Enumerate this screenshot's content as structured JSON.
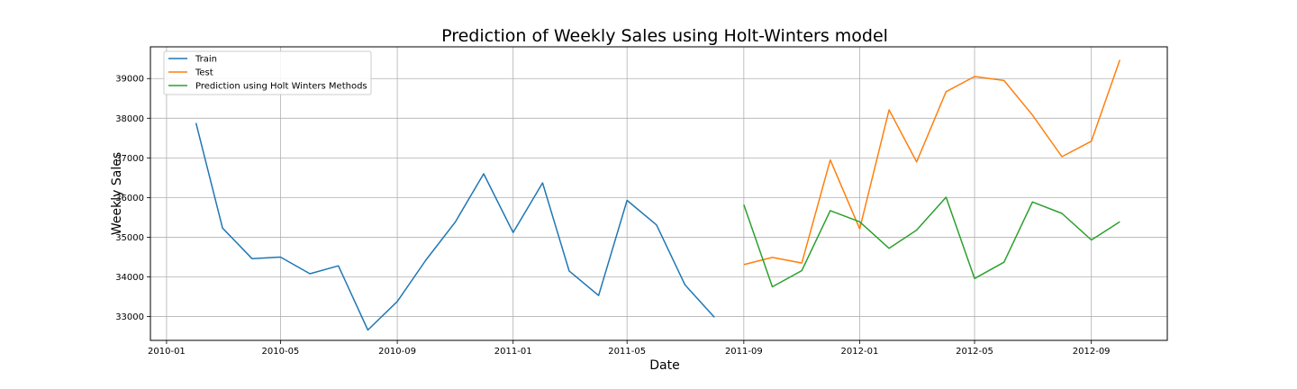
{
  "chart_data": {
    "type": "line",
    "title": "Prediction of Weekly Sales using Holt-Winters model",
    "xlabel": "Date",
    "ylabel": "Weekly Sales",
    "xlim": [
      "2009-12-15",
      "2012-11-20"
    ],
    "ylim": [
      32400,
      39800
    ],
    "x_ticks": [
      {
        "date": "2010-01-01",
        "label": "2010-01"
      },
      {
        "date": "2010-05-01",
        "label": "2010-05"
      },
      {
        "date": "2010-09-01",
        "label": "2010-09"
      },
      {
        "date": "2011-01-01",
        "label": "2011-01"
      },
      {
        "date": "2011-05-01",
        "label": "2011-05"
      },
      {
        "date": "2011-09-01",
        "label": "2011-09"
      },
      {
        "date": "2012-01-01",
        "label": "2012-01"
      },
      {
        "date": "2012-05-01",
        "label": "2012-05"
      },
      {
        "date": "2012-09-01",
        "label": "2012-09"
      }
    ],
    "y_ticks": [
      33000,
      34000,
      35000,
      36000,
      37000,
      38000,
      39000
    ],
    "grid": true,
    "legend_position": "top-left",
    "series": [
      {
        "name": "Train",
        "color": "#1f77b4",
        "points": [
          {
            "x": "2010-02-01",
            "y": 37880
          },
          {
            "x": "2010-03-01",
            "y": 35230
          },
          {
            "x": "2010-04-01",
            "y": 34460
          },
          {
            "x": "2010-05-01",
            "y": 34500
          },
          {
            "x": "2010-06-01",
            "y": 34080
          },
          {
            "x": "2010-07-01",
            "y": 34280
          },
          {
            "x": "2010-08-01",
            "y": 32660
          },
          {
            "x": "2010-09-01",
            "y": 33380
          },
          {
            "x": "2010-10-01",
            "y": 34420
          },
          {
            "x": "2010-11-01",
            "y": 35380
          },
          {
            "x": "2010-12-01",
            "y": 36600
          },
          {
            "x": "2011-01-01",
            "y": 35120
          },
          {
            "x": "2011-02-01",
            "y": 36370
          },
          {
            "x": "2011-03-01",
            "y": 34150
          },
          {
            "x": "2011-04-01",
            "y": 33530
          },
          {
            "x": "2011-05-01",
            "y": 35930
          },
          {
            "x": "2011-06-01",
            "y": 35310
          },
          {
            "x": "2011-07-01",
            "y": 33800
          },
          {
            "x": "2011-08-01",
            "y": 32980
          }
        ]
      },
      {
        "name": "Test",
        "color": "#ff7f0e",
        "points": [
          {
            "x": "2011-09-01",
            "y": 34310
          },
          {
            "x": "2011-10-01",
            "y": 34490
          },
          {
            "x": "2011-11-01",
            "y": 34350
          },
          {
            "x": "2011-12-01",
            "y": 36950
          },
          {
            "x": "2012-01-01",
            "y": 35210
          },
          {
            "x": "2012-02-01",
            "y": 38210
          },
          {
            "x": "2012-03-01",
            "y": 36900
          },
          {
            "x": "2012-04-01",
            "y": 38670
          },
          {
            "x": "2012-05-01",
            "y": 39050
          },
          {
            "x": "2012-06-01",
            "y": 38950
          },
          {
            "x": "2012-07-01",
            "y": 38080
          },
          {
            "x": "2012-08-01",
            "y": 37030
          },
          {
            "x": "2012-09-01",
            "y": 37420
          },
          {
            "x": "2012-10-01",
            "y": 39470
          }
        ]
      },
      {
        "name": "Prediction using Holt Winters Methods",
        "color": "#2ca02c",
        "points": [
          {
            "x": "2011-09-01",
            "y": 35820
          },
          {
            "x": "2011-10-01",
            "y": 33750
          },
          {
            "x": "2011-11-01",
            "y": 34160
          },
          {
            "x": "2011-12-01",
            "y": 35670
          },
          {
            "x": "2012-01-01",
            "y": 35390
          },
          {
            "x": "2012-02-01",
            "y": 34720
          },
          {
            "x": "2012-03-01",
            "y": 35180
          },
          {
            "x": "2012-04-01",
            "y": 36010
          },
          {
            "x": "2012-05-01",
            "y": 33960
          },
          {
            "x": "2012-06-01",
            "y": 34370
          },
          {
            "x": "2012-07-01",
            "y": 35890
          },
          {
            "x": "2012-08-01",
            "y": 35600
          },
          {
            "x": "2012-09-01",
            "y": 34930
          },
          {
            "x": "2012-10-01",
            "y": 35390
          }
        ]
      }
    ]
  }
}
